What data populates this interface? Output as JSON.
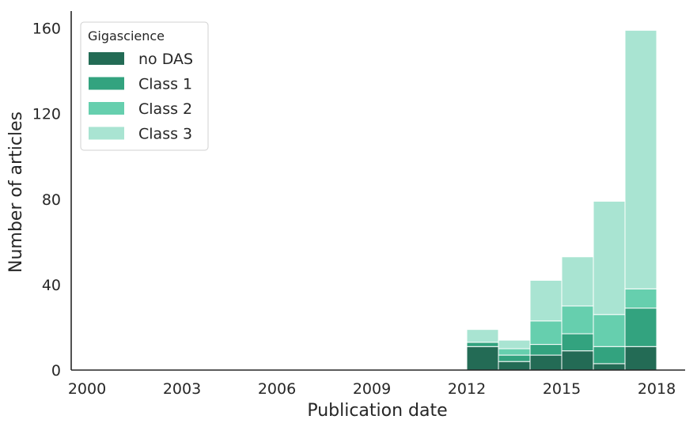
{
  "chart_data": {
    "type": "bar",
    "stacked": true,
    "xlabel": "Publication date",
    "ylabel": "Number of articles",
    "xlim": [
      1999.5,
      2018.9
    ],
    "ylim": [
      0,
      168
    ],
    "xticks": [
      {
        "value": 2000,
        "label": "2000"
      },
      {
        "value": 2003,
        "label": "2003"
      },
      {
        "value": 2006,
        "label": "2006"
      },
      {
        "value": 2009,
        "label": "2009"
      },
      {
        "value": 2012,
        "label": "2012"
      },
      {
        "value": 2015,
        "label": "2015"
      },
      {
        "value": 2018,
        "label": "2018"
      }
    ],
    "yticks": [
      {
        "value": 0,
        "label": "0"
      },
      {
        "value": 40,
        "label": "40"
      },
      {
        "value": 80,
        "label": "80"
      },
      {
        "value": 120,
        "label": "120"
      },
      {
        "value": 160,
        "label": "160"
      }
    ],
    "bins": [
      {
        "start": 2012.0,
        "end": 2013.0
      },
      {
        "start": 2013.0,
        "end": 2014.0
      },
      {
        "start": 2014.0,
        "end": 2015.0
      },
      {
        "start": 2015.0,
        "end": 2016.0
      },
      {
        "start": 2016.0,
        "end": 2017.0
      },
      {
        "start": 2017.0,
        "end": 2018.0
      }
    ],
    "series": [
      {
        "name": "no DAS",
        "color": "#236b55",
        "values": [
          11,
          4,
          7,
          9,
          3,
          11
        ]
      },
      {
        "name": "Class 1",
        "color": "#33a37f",
        "values": [
          2,
          3,
          5,
          8,
          8,
          18
        ]
      },
      {
        "name": "Class 2",
        "color": "#66cfae",
        "values": [
          0,
          3,
          11,
          13,
          15,
          9
        ]
      },
      {
        "name": "Class 3",
        "color": "#a9e4d2",
        "values": [
          6,
          4,
          19,
          23,
          53,
          121
        ]
      }
    ],
    "legend": {
      "title": "Gigascience",
      "placement": "top-left"
    },
    "grid": false
  }
}
